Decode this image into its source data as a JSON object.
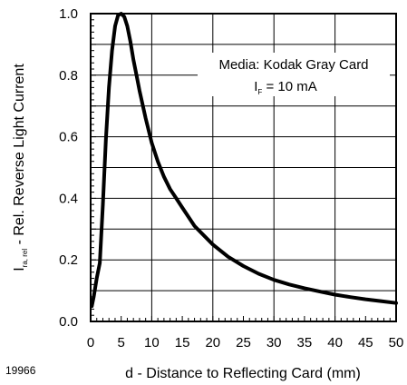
{
  "chart_data": {
    "type": "line",
    "figure_id": "19966",
    "xlabel": "d - Distance to Reflecting Card (mm)",
    "ylabel": {
      "main": "I",
      "subscript": "ra, rel",
      "rest": " - Rel. Reverse Light Current"
    },
    "xlim": [
      0,
      50
    ],
    "ylim": [
      0,
      1.0
    ],
    "x_ticks": [
      "0",
      "5",
      "10",
      "15",
      "20",
      "25",
      "30",
      "35",
      "40",
      "45",
      "50"
    ],
    "y_ticks": [
      "0.0",
      "0.2",
      "0.4",
      "0.6",
      "0.8",
      "1.0"
    ],
    "grid": true,
    "annotation": {
      "line1": "Media: Kodak Gray Card",
      "line2_main": "I",
      "line2_sub": "F",
      "line2_rest": " = 10 mA"
    },
    "series": [
      {
        "color": "#000000",
        "x": [
          0.2,
          0.5,
          1.0,
          1.5,
          2.0,
          2.5,
          3.0,
          3.5,
          4.0,
          4.5,
          5.0,
          5.5,
          6.0,
          6.5,
          7.0,
          7.5,
          8.0,
          9.0,
          10.0,
          11.0,
          12.0,
          13.0,
          14.0,
          15.0,
          17.0,
          20.0,
          22.5,
          25.0,
          27.5,
          30.0,
          32.5,
          35.0,
          37.5,
          40.0,
          42.5,
          45.0,
          47.5,
          50.0
        ],
        "y": [
          0.05,
          0.08,
          0.14,
          0.19,
          0.38,
          0.59,
          0.76,
          0.88,
          0.96,
          0.995,
          1.0,
          0.99,
          0.96,
          0.91,
          0.85,
          0.8,
          0.75,
          0.66,
          0.58,
          0.52,
          0.47,
          0.43,
          0.4,
          0.37,
          0.31,
          0.25,
          0.21,
          0.18,
          0.155,
          0.135,
          0.12,
          0.108,
          0.097,
          0.087,
          0.079,
          0.072,
          0.066,
          0.06
        ]
      }
    ]
  }
}
